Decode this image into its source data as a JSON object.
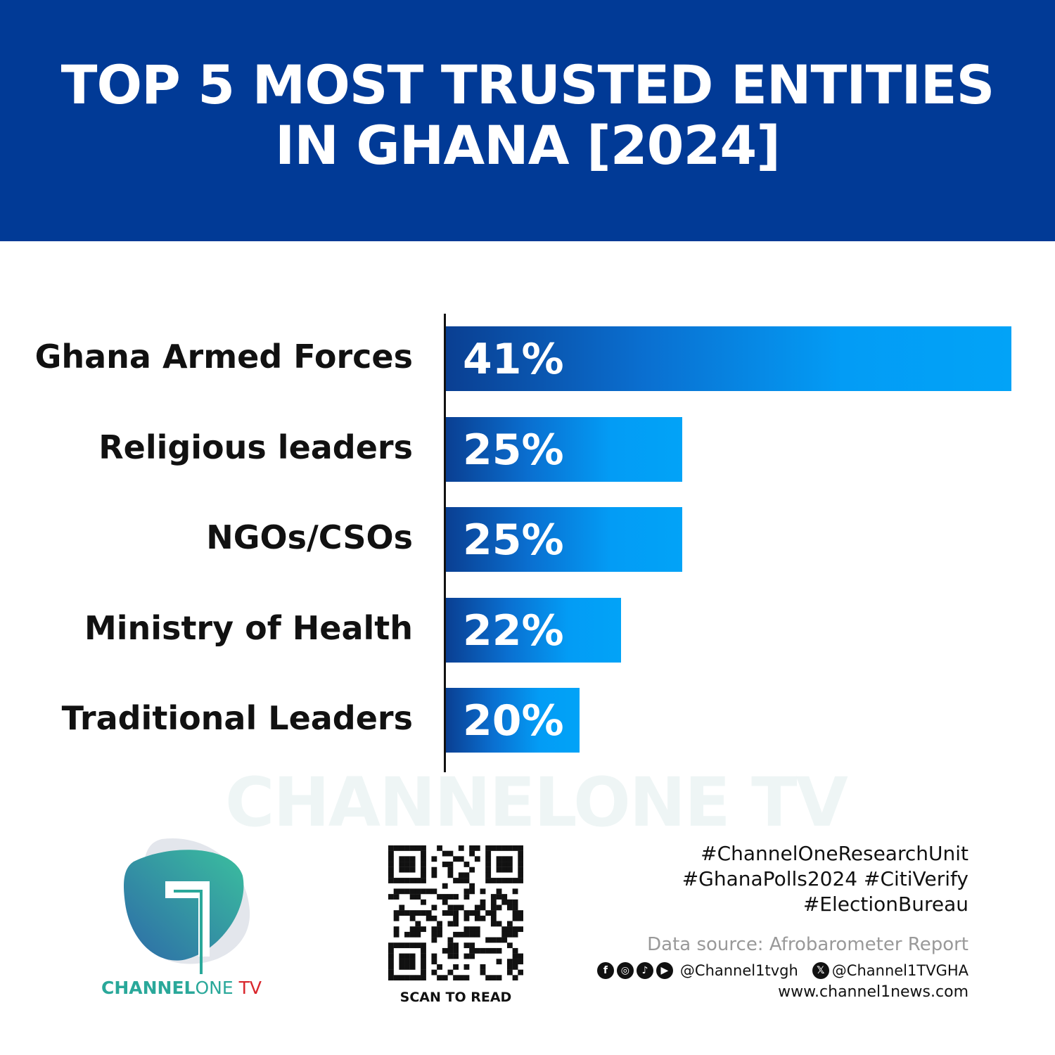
{
  "header": {
    "title_line1": "TOP 5 MOST TRUSTED ENTITIES",
    "title_line2": "IN GHANA [2024]"
  },
  "chart_data": {
    "type": "bar",
    "orientation": "horizontal",
    "title": "TOP 5 MOST TRUSTED ENTITIES IN GHANA [2024]",
    "categories": [
      "Ghana Armed Forces",
      "Religious leaders",
      "NGOs/CSOs",
      "Ministry of Health",
      "Traditional Leaders"
    ],
    "values": [
      41,
      25,
      25,
      22,
      20
    ],
    "value_labels": [
      "41%",
      "25%",
      "25%",
      "22%",
      "20%"
    ],
    "unit": "%",
    "grid": false,
    "bar_color_gradient": [
      "#0a3f92",
      "#02a3f7"
    ]
  },
  "watermark": "CHANNELONE TV",
  "logo": {
    "text_bold": "CHANNEL",
    "text_light": "ONE",
    "text_red": "TV",
    "colors": {
      "teal": "#2aa89a",
      "red": "#d9262c"
    }
  },
  "qr": {
    "label": "SCAN TO READ"
  },
  "footer": {
    "hashtags": [
      "#ChannelOneResearchUnit",
      "#GhanaPolls2024 #CitiVerify",
      "#ElectionBureau"
    ],
    "source": "Data source: Afrobarometer Report",
    "social_icons": [
      "facebook-icon",
      "instagram-icon",
      "tiktok-icon",
      "youtube-icon"
    ],
    "handle_main": "@Channel1tvgh",
    "handle_x": "@Channel1TVGHA",
    "website": "www.channel1news.com"
  },
  "colors": {
    "header_bg": "#013a96",
    "bar_light": "#02a3f7",
    "bar_dark": "#0a3f92"
  }
}
